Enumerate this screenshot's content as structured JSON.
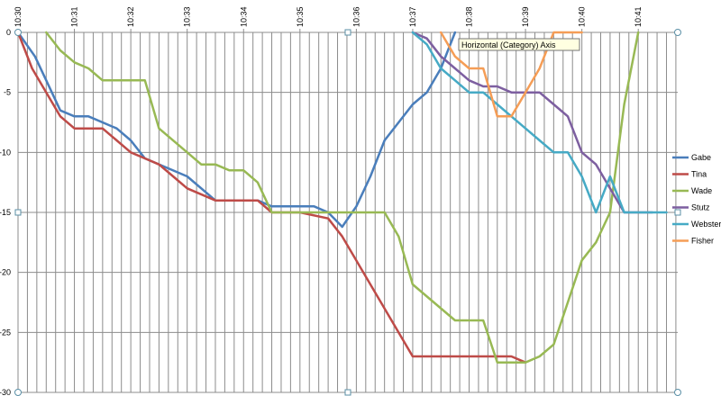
{
  "chart_data": {
    "type": "line",
    "title": "",
    "xlabel": "",
    "ylabel": "",
    "x_ticks": [
      "10:30",
      "10:31",
      "10:32",
      "10:33",
      "10:34",
      "10:35",
      "10:36",
      "10:37",
      "10:38",
      "10:39",
      "10:40",
      "10:41"
    ],
    "y_ticks": [
      "0",
      "-5",
      "-10",
      "-15",
      "-20",
      "-25",
      "-30"
    ],
    "xlim": [
      0,
      11.7
    ],
    "ylim": [
      -30,
      0
    ],
    "minor_per_minute": 6,
    "grid": true,
    "legend_position": "right",
    "tooltip": "Horizontal (Category) Axis",
    "series": [
      {
        "name": "Gabe",
        "color": "#4A7EBB",
        "points": [
          [
            0,
            0
          ],
          [
            0.3,
            -2
          ],
          [
            0.5,
            -4
          ],
          [
            0.75,
            -6.5
          ],
          [
            1,
            -7
          ],
          [
            1.25,
            -7
          ],
          [
            1.75,
            -8
          ],
          [
            2,
            -9
          ],
          [
            2.25,
            -10.5
          ],
          [
            3,
            -12
          ],
          [
            3.5,
            -14
          ],
          [
            4.25,
            -14
          ],
          [
            4.5,
            -14.5
          ],
          [
            5.25,
            -14.5
          ],
          [
            5.5,
            -15
          ],
          [
            5.75,
            -16.2
          ],
          [
            6,
            -14.5
          ],
          [
            6.25,
            -12
          ],
          [
            6.5,
            -9
          ],
          [
            6.75,
            -7.5
          ],
          [
            7,
            -6
          ],
          [
            7.25,
            -5
          ],
          [
            7.5,
            -3
          ],
          [
            7.75,
            0
          ]
        ]
      },
      {
        "name": "Tina",
        "color": "#BE4B48",
        "points": [
          [
            0,
            0
          ],
          [
            0.25,
            -3
          ],
          [
            0.5,
            -5
          ],
          [
            0.75,
            -7
          ],
          [
            1,
            -8
          ],
          [
            1.5,
            -8
          ],
          [
            1.75,
            -9
          ],
          [
            2,
            -10
          ],
          [
            2.25,
            -10.5
          ],
          [
            2.5,
            -11
          ],
          [
            2.75,
            -12
          ],
          [
            3,
            -13
          ],
          [
            3.5,
            -14
          ],
          [
            4.25,
            -14
          ],
          [
            4.5,
            -15
          ],
          [
            5,
            -15
          ],
          [
            5.5,
            -15.5
          ],
          [
            5.75,
            -17
          ],
          [
            7,
            -27
          ],
          [
            8.75,
            -27
          ],
          [
            9,
            -27.5
          ]
        ]
      },
      {
        "name": "Wade",
        "color": "#98B954",
        "points": [
          [
            0.5,
            0
          ],
          [
            0.75,
            -1.5
          ],
          [
            1,
            -2.5
          ],
          [
            1.25,
            -3
          ],
          [
            1.5,
            -4
          ],
          [
            2.25,
            -4
          ],
          [
            2.5,
            -8
          ],
          [
            3,
            -10
          ],
          [
            3.25,
            -11
          ],
          [
            3.5,
            -11
          ],
          [
            3.75,
            -11.5
          ],
          [
            4,
            -11.5
          ],
          [
            4.25,
            -12.5
          ],
          [
            4.5,
            -15
          ],
          [
            6.5,
            -15
          ],
          [
            6.75,
            -17
          ],
          [
            7,
            -21
          ],
          [
            7.75,
            -24
          ],
          [
            8.25,
            -24
          ],
          [
            8.5,
            -27.5
          ],
          [
            9,
            -27.5
          ],
          [
            9.25,
            -27
          ],
          [
            9.5,
            -26
          ],
          [
            10,
            -19
          ],
          [
            10.25,
            -17.5
          ],
          [
            10.5,
            -15
          ],
          [
            10.75,
            -6
          ],
          [
            11,
            0
          ]
        ]
      },
      {
        "name": "Stutz",
        "color": "#7D5FA0",
        "points": [
          [
            7,
            0
          ],
          [
            7.25,
            -0.5
          ],
          [
            7.5,
            -2
          ],
          [
            7.75,
            -3
          ],
          [
            8,
            -4
          ],
          [
            8.25,
            -4.5
          ],
          [
            8.5,
            -4.5
          ],
          [
            8.75,
            -5
          ],
          [
            9.25,
            -5
          ],
          [
            9.5,
            -6
          ],
          [
            9.75,
            -7
          ],
          [
            10,
            -10
          ],
          [
            10.25,
            -11
          ],
          [
            10.5,
            -13
          ],
          [
            10.75,
            -15
          ],
          [
            11.25,
            -15
          ]
        ]
      },
      {
        "name": "Webster",
        "color": "#46AAC5",
        "points": [
          [
            7,
            0
          ],
          [
            7.25,
            -1
          ],
          [
            7.5,
            -3
          ],
          [
            7.75,
            -4
          ],
          [
            8,
            -5
          ],
          [
            8.25,
            -5
          ],
          [
            8.5,
            -6
          ],
          [
            8.75,
            -7
          ],
          [
            9,
            -8
          ],
          [
            9.25,
            -9
          ],
          [
            9.5,
            -10
          ],
          [
            9.75,
            -10
          ],
          [
            10,
            -12
          ],
          [
            10.25,
            -15
          ],
          [
            10.5,
            -12
          ],
          [
            10.75,
            -15
          ],
          [
            11.5,
            -15
          ]
        ]
      },
      {
        "name": "Fisher",
        "color": "#F59D56",
        "points": [
          [
            7.5,
            0
          ],
          [
            7.75,
            -2
          ],
          [
            8,
            -3
          ],
          [
            8.25,
            -3
          ],
          [
            8.5,
            -7
          ],
          [
            8.75,
            -7
          ],
          [
            9,
            -5
          ],
          [
            9.25,
            -3
          ],
          [
            9.5,
            0
          ],
          [
            10,
            0
          ]
        ]
      }
    ]
  }
}
